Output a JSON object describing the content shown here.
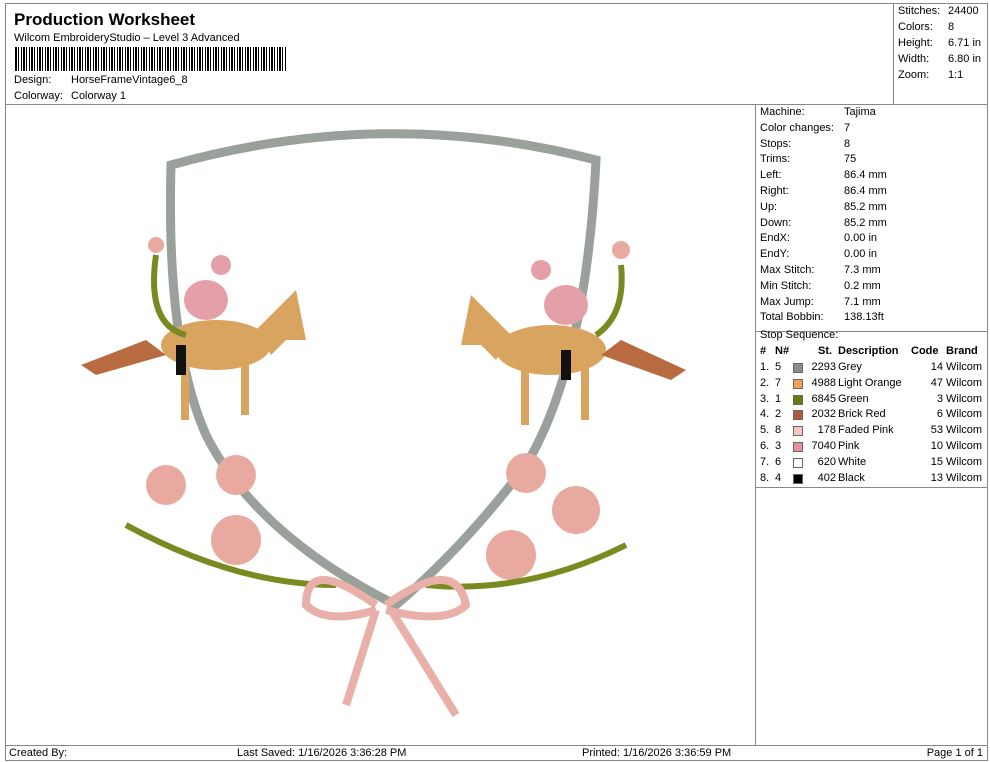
{
  "header": {
    "title": "Production Worksheet",
    "subtitle": "Wilcom EmbroideryStudio – Level 3 Advanced",
    "design_label": "Design:",
    "design": "HorseFrameVintage6_8",
    "colorway_label": "Colorway:",
    "colorway": "Colorway 1"
  },
  "stats": [
    {
      "k": "Stitches:",
      "v": "24400"
    },
    {
      "k": "Colors:",
      "v": "8"
    },
    {
      "k": "Height:",
      "v": "6.71 in"
    },
    {
      "k": "Width:",
      "v": "6.80 in"
    },
    {
      "k": "Zoom:",
      "v": "1:1"
    }
  ],
  "machine": [
    {
      "k": "Machine:",
      "v": "Tajima"
    },
    {
      "k": "Color changes:",
      "v": "7"
    },
    {
      "k": "Stops:",
      "v": "8"
    },
    {
      "k": "Trims:",
      "v": "75"
    },
    {
      "k": "Left:",
      "v": "86.4 mm"
    },
    {
      "k": "Right:",
      "v": "86.4 mm"
    },
    {
      "k": "Up:",
      "v": "85.2 mm"
    },
    {
      "k": "Down:",
      "v": "85.2 mm"
    },
    {
      "k": "EndX:",
      "v": "0.00 in"
    },
    {
      "k": "EndY:",
      "v": "0.00 in"
    },
    {
      "k": "Max Stitch:",
      "v": "7.3 mm"
    },
    {
      "k": "Min Stitch:",
      "v": "0.2 mm"
    },
    {
      "k": "Max Jump:",
      "v": "7.1 mm"
    },
    {
      "k": "Total Bobbin:",
      "v": "138.13ft"
    }
  ],
  "stop_sequence": {
    "label": "Stop Sequence:",
    "columns": [
      "#",
      "N#",
      "St.",
      "Description",
      "Code",
      "Brand"
    ],
    "rows": [
      {
        "i": "1.",
        "n": "5",
        "color": "#8c8c8c",
        "st": "2293",
        "desc": "Grey",
        "code": "14",
        "brand": "Wilcom"
      },
      {
        "i": "2.",
        "n": "7",
        "color": "#f0a050",
        "st": "4988",
        "desc": "Light Orange",
        "code": "47",
        "brand": "Wilcom"
      },
      {
        "i": "3.",
        "n": "1",
        "color": "#6b7a10",
        "st": "6845",
        "desc": "Green",
        "code": "3",
        "brand": "Wilcom"
      },
      {
        "i": "4.",
        "n": "2",
        "color": "#b05a38",
        "st": "2032",
        "desc": "Brick Red",
        "code": "6",
        "brand": "Wilcom"
      },
      {
        "i": "5.",
        "n": "8",
        "color": "#f4c8c0",
        "st": "178",
        "desc": "Faded Pink",
        "code": "53",
        "brand": "Wilcom"
      },
      {
        "i": "6.",
        "n": "3",
        "color": "#e890a0",
        "st": "7040",
        "desc": "Pink",
        "code": "10",
        "brand": "Wilcom"
      },
      {
        "i": "7.",
        "n": "6",
        "color": "#ffffff",
        "st": "620",
        "desc": "White",
        "code": "15",
        "brand": "Wilcom"
      },
      {
        "i": "8.",
        "n": "4",
        "color": "#000000",
        "st": "402",
        "desc": "Black",
        "code": "13",
        "brand": "Wilcom"
      }
    ]
  },
  "footer": {
    "created": "Created By:",
    "saved": "Last Saved: 1/16/2026 3:36:28 PM",
    "printed": "Printed: 1/16/2026 3:36:59 PM",
    "page": "Page 1 of 1"
  }
}
